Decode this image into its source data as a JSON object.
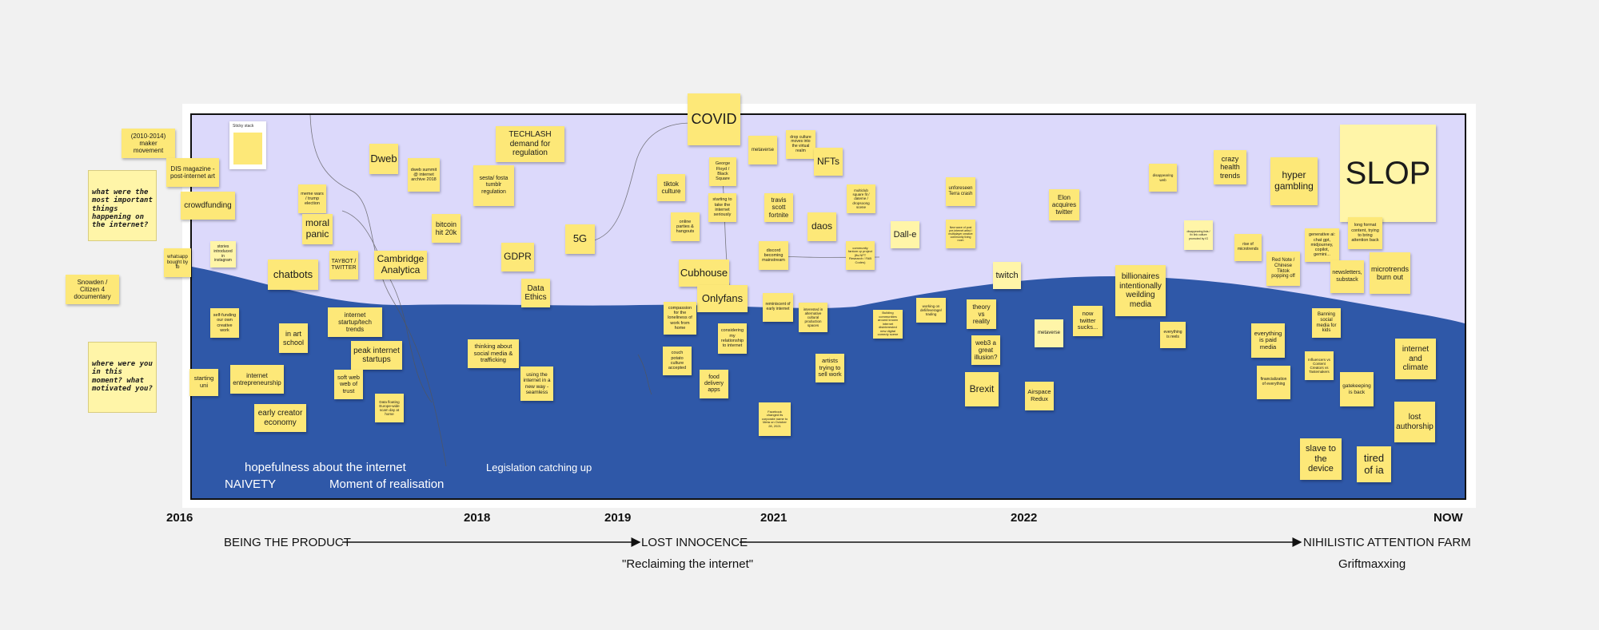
{
  "colors": {
    "upper_band": "#dcd9fb",
    "lower_band": "#2f58a8",
    "note": "#fde878",
    "note_pale": "#fff5a8",
    "background": "#f1f1f1"
  },
  "sticky_widget_label": "Sticky stack",
  "questions": {
    "q1": "what were the most important things happening on the internet?",
    "q2": "where were you in this moment? what motivated you?"
  },
  "wave_labels": {
    "hopefulness": "hopefulness about the internet",
    "naivety": "NAIVETY",
    "realisation": "Moment of realisation",
    "legislation": "Legislation catching up"
  },
  "years": [
    "2016",
    "2018",
    "2019",
    "2021",
    "2022",
    "NOW"
  ],
  "eras": {
    "being_product": "BEING THE PRODUCT",
    "lost_innocence": "LOST INNOCENCE",
    "nihilistic": "NIHILISTIC ATTENTION FARM",
    "reclaiming": "\"Reclaiming the internet\"",
    "griftmaxxing": "Griftmaxxing"
  },
  "notes": {
    "maker": "(2010-2014) maker movement",
    "dis": "DIS magazine - post-internet art",
    "crowdfunding": "crowdfunding",
    "whatsapp": "whatsapp bought by fb",
    "stories": "stories introduced in instagram",
    "snowden": "Snowden / Citizen 4 documentary",
    "memewars": "meme wars / trump election",
    "moralpanic": "moral panic",
    "dweb": "Dweb",
    "dwebsummit": "dweb summit @ internet archive 2018",
    "bitcoin": "bitcoin hit 20k",
    "taybot": "TAYBOT / TWITTER",
    "cambridge": "Cambridge Analytica",
    "chatbots": "chatbots",
    "techlash": "TECHLASH demand for regulation",
    "sesta": "sesta/ fosta tumblr regulation",
    "gdpr": "GDPR",
    "fiveg": "5G",
    "dataethics": "Data Ethics",
    "covid": "COVID",
    "tiktokculture": "tiktok culture",
    "georgefloyd": "George Floyd / Black Square",
    "startingtake": "starting to take the internet seriously",
    "onlineparties": "online parties & hangouts",
    "metaverse1": "metaverse",
    "dropculture": "drop culture moves into the virtual realm",
    "nfts": "NFTs",
    "travisscott": "travis scott fortnite",
    "daos": "daos",
    "discord": "discord becoming mainstream",
    "multiclub": "multiclub square fit / dateme / dropsoong scene",
    "community": "community fantom qr project (fts NFT Research / FAB Codes)",
    "dalle": "Dall-e",
    "cubhouse": "Cubhouse",
    "onlyfans": "Onlyfans",
    "selffunding": "self-funding our own creative work",
    "inartschool": "in art school",
    "startupstrends": "internet startup/tech trends",
    "peakstartups": "peak internet startups",
    "startinguni": "starting uni",
    "entrepreneurship": "internet entrepreneurship",
    "softweb": "soft web web of trust",
    "earlycreator": "early creator economy",
    "datafloating": "Data floating Europe-wide scam day at home",
    "thinkingabout": "thinking about social media & trafficking",
    "usingnewway": "using the internet in a new way - seamless",
    "compassion": "compassion for the loneliness of work from home",
    "couchpotato": "couch potato culture accepted",
    "considering": "considering my relationship to internet",
    "fooddelivery": "food delivery apps",
    "reminiscent": "reminiscent of early internet",
    "interested": "interested in alternative cultural production spaces",
    "artists": "artists trying to sell work",
    "facebookmeta": "Facebook changed its corporate name to Meta on October 28, 2021",
    "unforeseen": "unforeseen Terra crash",
    "newwave": "New wave of post pre-internet artist / multiplayer creative community living room",
    "buildingcomm": "Building communities around known internet disinterested new digital comedy scene",
    "workingdev": "working on defi/leverage/ trading",
    "twitch": "twitch",
    "theory": "theory vs reality",
    "web3": "web3 a great illusion?",
    "brexit": "Brexit",
    "metaverse2": "metaverse",
    "airspace": "Airspace Redux",
    "elon": "Elon acquires twitter",
    "nowtwitter": "now twitter sucks...",
    "billionaires": "billionaires intentionally weilding media",
    "disappearing": "disappearing web",
    "crazyhealth": "crazy health trends",
    "disappearing2": "disappearing lists / fix link culture promoted by IG",
    "everythingreels": "everything is reels",
    "hypergambling": "hyper gambling",
    "slop": "SLOP",
    "rise": "rise of microtrends",
    "rednote": "Red Note / Chinese Tiktok popping off",
    "generativeai": "generative ai: chat gpt, midjourney, copilot, gemini...",
    "longform": "long format content, trying to bring attention back",
    "newsletters": "newsletters, substack",
    "microtrends": "microtrends burn out",
    "everythingpaid": "everything is paid media",
    "financialization": "financialization of everything",
    "banning": "Banning social media for kids",
    "influencers": "Influencers vs Content Creators vs Tastemakers",
    "gatekeeping": "gatekeeping is back",
    "climate": "internet and climate",
    "lostauthorship": "lost authorship",
    "slave": "slave to the device",
    "tiredia": "tired of ia"
  }
}
